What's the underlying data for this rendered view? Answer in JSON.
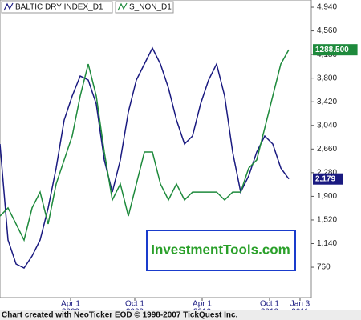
{
  "chart_data": {
    "type": "line",
    "legend": "top-left",
    "categories": [
      null,
      null,
      null,
      null,
      null,
      null,
      null,
      null,
      null,
      null,
      null,
      null,
      null,
      null,
      null,
      null,
      null,
      null,
      null,
      null,
      null,
      null,
      null,
      null,
      null,
      null,
      null,
      null,
      null,
      null,
      null,
      null,
      null,
      null,
      null,
      null,
      null
    ],
    "xlim": [
      0,
      38.8
    ],
    "xticks": [
      {
        "value": 8.8,
        "label": [
          "Apr 1",
          "2009"
        ]
      },
      {
        "value": 16.8,
        "label": [
          "Oct 1",
          "2009"
        ]
      },
      {
        "value": 25.2,
        "label": [
          "Apr 1",
          "2010"
        ]
      },
      {
        "value": 33.6,
        "label": [
          "Oct 1",
          "2010"
        ]
      },
      {
        "value": 37.4,
        "label": [
          "Jan 3",
          "2011"
        ]
      }
    ],
    "ylim": [
      272,
      5056
    ],
    "yticks": [
      760,
      {
        "value": 1140,
        "label": "1,140"
      },
      {
        "value": 1520,
        "label": "1,520"
      },
      {
        "value": 1900,
        "label": "1,900"
      },
      {
        "value": 2280,
        "label": "2,280"
      },
      {
        "value": 2660,
        "label": "2,660"
      },
      {
        "value": 3040,
        "label": "3,040"
      },
      {
        "value": 3420,
        "label": "3,420"
      },
      {
        "value": 3800,
        "label": "3,800"
      },
      {
        "value": 4180,
        "label": "4,180"
      },
      {
        "value": 4560,
        "label": "4,560"
      },
      {
        "value": 4940,
        "label": "4,940"
      }
    ],
    "y2lim": [
      100,
      1527
    ],
    "series": [
      {
        "name": "BALTIC DRY INDEX_D1",
        "color": "#1a1a80",
        "values": [
          2741,
          1198,
          812,
          748,
          940,
          1198,
          1712,
          2355,
          3127,
          3513,
          3834,
          3770,
          3384,
          2484,
          1969,
          2484,
          3255,
          3770,
          4027,
          4284,
          4027,
          3641,
          3127,
          2741,
          2870,
          3384,
          3770,
          4027,
          3513,
          2612,
          1969,
          2227,
          2612,
          2870,
          2741,
          2355,
          2179
        ],
        "value_labels": [
          null,
          null,
          null,
          null,
          null,
          null,
          null,
          null,
          null,
          null,
          null,
          null,
          null,
          null,
          null,
          null,
          null,
          null,
          null,
          null,
          null,
          null,
          null,
          null,
          null,
          null,
          null,
          null,
          null,
          null,
          null,
          null,
          null,
          null,
          null,
          null,
          "2,179"
        ]
      },
      {
        "name": "S_NON_D1",
        "color": "#1e8a3c",
        "axis": "y2",
        "values": [
          491,
          530,
          453,
          376,
          530,
          606,
          453,
          645,
          760,
          875,
          1067,
          1220,
          1067,
          798,
          568,
          645,
          491,
          645,
          798,
          798,
          645,
          568,
          645,
          568,
          606,
          606,
          606,
          606,
          568,
          606,
          606,
          721,
          760,
          913,
          1067,
          1220,
          1288.5
        ],
        "value_labels": [
          null,
          null,
          null,
          null,
          null,
          null,
          null,
          null,
          null,
          null,
          null,
          null,
          null,
          null,
          null,
          null,
          null,
          null,
          null,
          null,
          null,
          null,
          null,
          null,
          null,
          null,
          null,
          null,
          null,
          null,
          null,
          null,
          null,
          null,
          null,
          null,
          "1288.500"
        ]
      }
    ],
    "watermark": "InvestmentTools.com",
    "footer": "Chart created with NeoTicker EOD © 1998-2007 TickQuest Inc."
  }
}
